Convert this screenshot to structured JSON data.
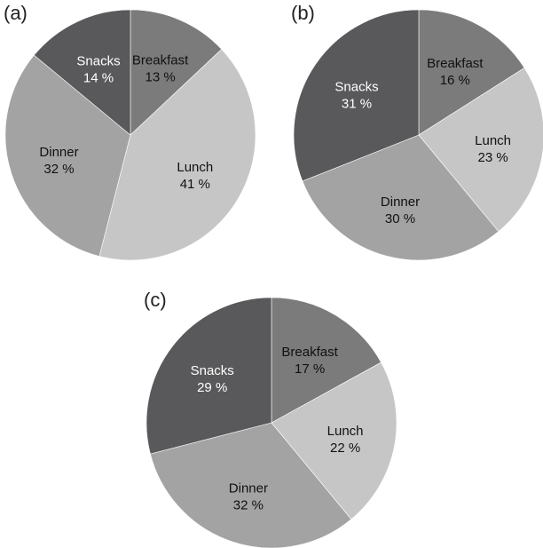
{
  "chart_data": [
    {
      "type": "pie",
      "panel_label": "(a)",
      "slices": [
        {
          "label": "Breakfast",
          "value": 13,
          "value_label": "13 %",
          "color": "#7b7b7b",
          "text_color": "#111111"
        },
        {
          "label": "Lunch",
          "value": 41,
          "value_label": "41 %",
          "color": "#c6c6c6",
          "text_color": "#111111"
        },
        {
          "label": "Dinner",
          "value": 32,
          "value_label": "32 %",
          "color": "#a3a3a3",
          "text_color": "#111111"
        },
        {
          "label": "Snacks",
          "value": 14,
          "value_label": "14 %",
          "color": "#59595b",
          "text_color": "#ffffff"
        }
      ]
    },
    {
      "type": "pie",
      "panel_label": "(b)",
      "slices": [
        {
          "label": "Breakfast",
          "value": 16,
          "value_label": "16 %",
          "color": "#7b7b7b",
          "text_color": "#111111"
        },
        {
          "label": "Lunch",
          "value": 23,
          "value_label": "23 %",
          "color": "#c6c6c6",
          "text_color": "#111111"
        },
        {
          "label": "Dinner",
          "value": 30,
          "value_label": "30 %",
          "color": "#a3a3a3",
          "text_color": "#111111"
        },
        {
          "label": "Snacks",
          "value": 31,
          "value_label": "31 %",
          "color": "#59595b",
          "text_color": "#ffffff"
        }
      ]
    },
    {
      "type": "pie",
      "panel_label": "(c)",
      "slices": [
        {
          "label": "Breakfast",
          "value": 17,
          "value_label": "17 %",
          "color": "#7b7b7b",
          "text_color": "#111111"
        },
        {
          "label": "Lunch",
          "value": 22,
          "value_label": "22 %",
          "color": "#c6c6c6",
          "text_color": "#111111"
        },
        {
          "label": "Dinner",
          "value": 32,
          "value_label": "32 %",
          "color": "#a3a3a3",
          "text_color": "#111111"
        },
        {
          "label": "Snacks",
          "value": 29,
          "value_label": "29 %",
          "color": "#59595b",
          "text_color": "#ffffff"
        }
      ]
    }
  ]
}
